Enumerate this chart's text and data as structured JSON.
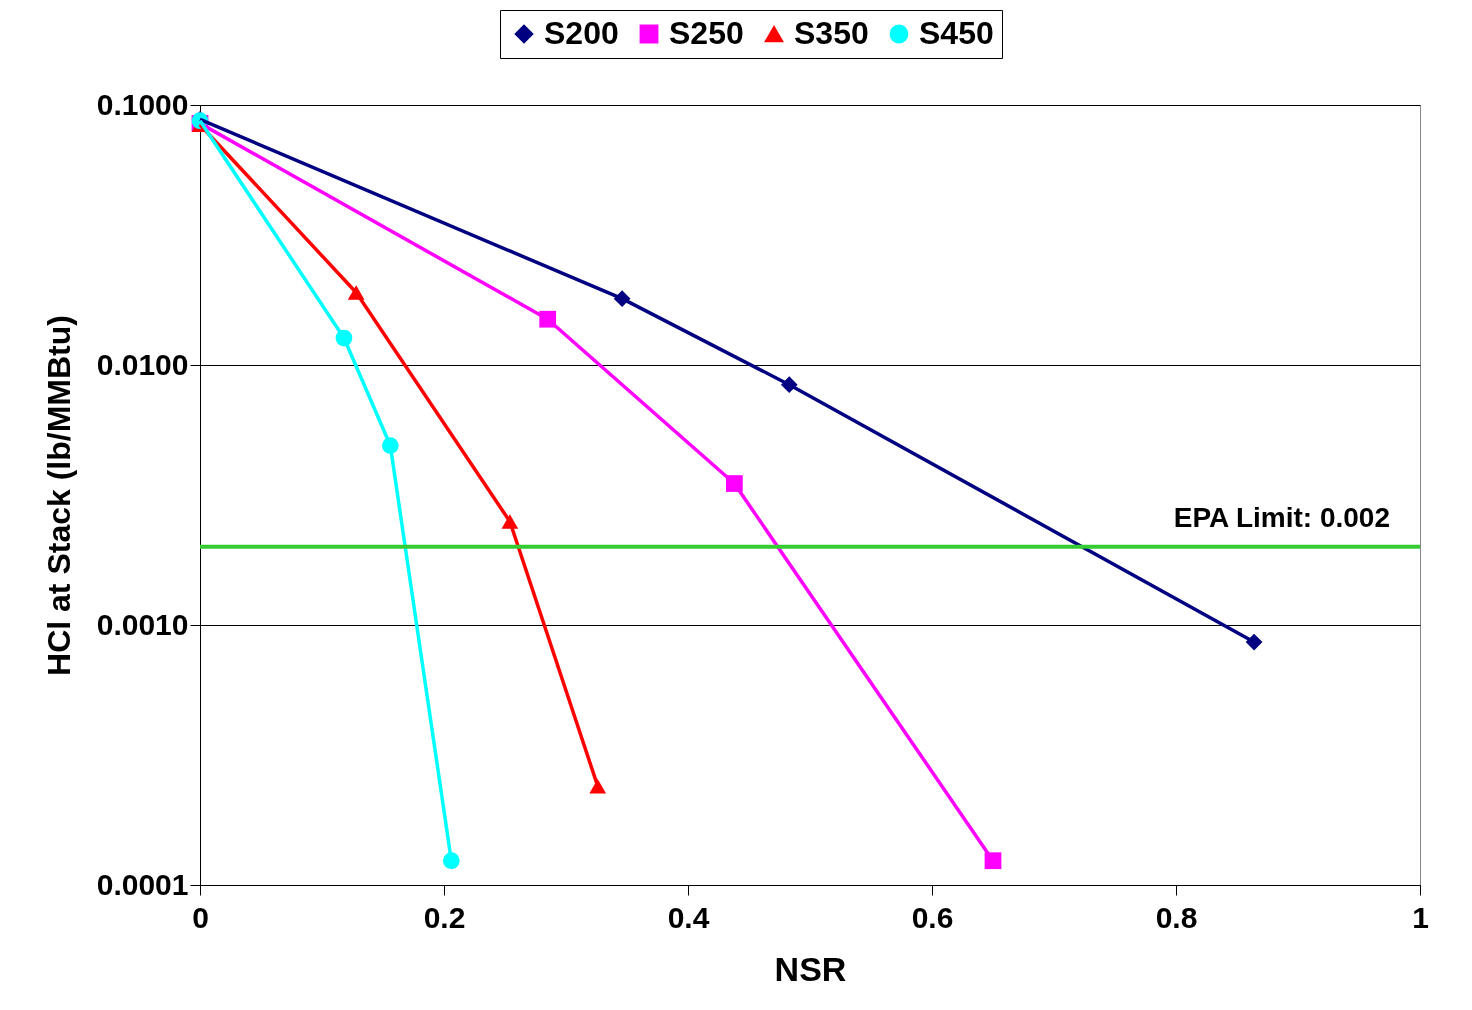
{
  "chart_data": {
    "type": "line",
    "xlabel": "NSR",
    "ylabel": "HCl at Stack (lb/MMBtu)",
    "log": "y",
    "xlim": [
      0,
      1
    ],
    "xticks": [
      0,
      0.2,
      0.4,
      0.6,
      0.8,
      1
    ],
    "ylim": [
      0.0001,
      0.1
    ],
    "yticks": [
      {
        "value": 0.0001,
        "label": "0.0001"
      },
      {
        "value": 0.001,
        "label": "0.0010"
      },
      {
        "value": 0.01,
        "label": "0.0100"
      },
      {
        "value": 0.1,
        "label": "0.1000"
      }
    ],
    "grid": "y",
    "legend": "top",
    "line_style": "solid",
    "series": [
      {
        "name": "S200",
        "color": "#000080",
        "marker": "diamond",
        "x": [
          0,
          0.346,
          0.483,
          0.864
        ],
        "values": [
          0.088,
          0.018,
          0.0084,
          0.00086
        ]
      },
      {
        "name": "S250",
        "color": "#ff00ff",
        "marker": "square",
        "x": [
          0,
          0.285,
          0.438,
          0.65
        ],
        "values": [
          0.085,
          0.015,
          0.0035,
          0.000124
        ]
      },
      {
        "name": "S350",
        "color": "#ff0000",
        "marker": "triangle",
        "x": [
          0,
          0.128,
          0.254,
          0.326
        ],
        "values": [
          0.084,
          0.019,
          0.0025,
          0.00024
        ]
      },
      {
        "name": "S450",
        "color": "#00ffff",
        "marker": "circle",
        "x": [
          0,
          0.118,
          0.156,
          0.206
        ],
        "values": [
          0.087,
          0.0127,
          0.0049,
          0.000124
        ]
      }
    ],
    "ref_lines": [
      {
        "axis": "y",
        "value": 0.002,
        "label": "EPA Limit: 0.002",
        "color": "#33cc33"
      }
    ]
  }
}
